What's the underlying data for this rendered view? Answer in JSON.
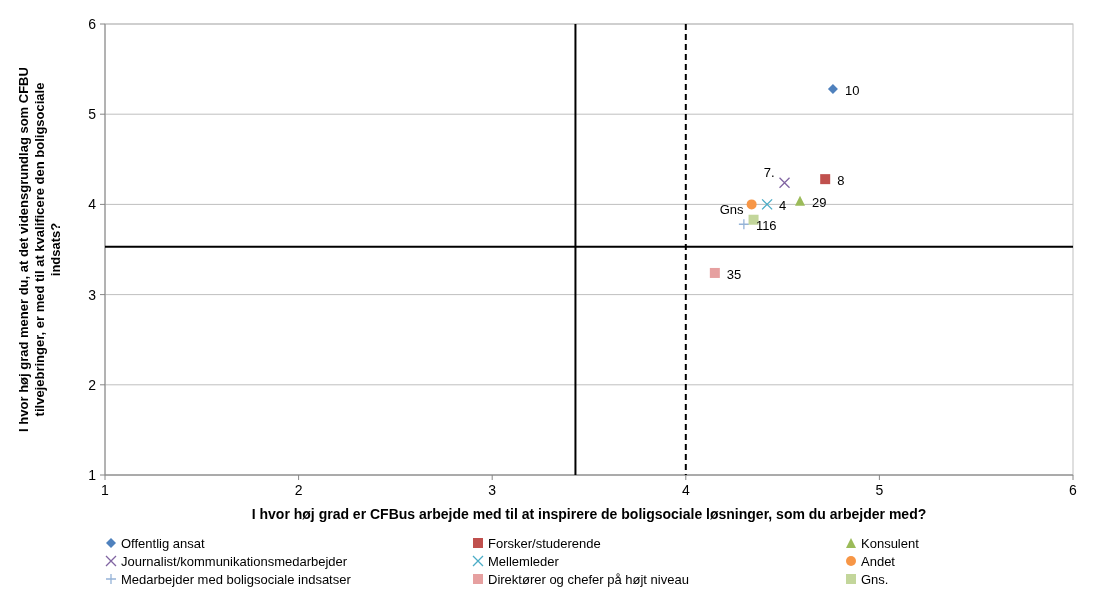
{
  "chart_data": {
    "type": "scatter",
    "xlabel": "I hvor høj grad er CFBus arbejde med til at inspirere de boligsociale løsninger, som du arbejder med?",
    "ylabel": "I hvor høj grad mener du, at det vidensgrundlag som CFBU tilvejebringer, er med til at kvalificere den boligsociale indsats?",
    "xlim": [
      1,
      6
    ],
    "ylim": [
      1,
      6
    ],
    "xticks": [
      1,
      2,
      3,
      4,
      5,
      6
    ],
    "yticks": [
      1,
      2,
      3,
      4,
      5,
      6
    ],
    "grid": "y",
    "legend": "bottom",
    "series": [
      {
        "name": "Offentlig ansat",
        "color": "#4f81bd",
        "marker": "diamond",
        "x": [
          4.76
        ],
        "values": [
          5.28
        ]
      },
      {
        "name": "Forsker/studerende",
        "color": "#c0504d",
        "marker": "square",
        "x": [
          4.72
        ],
        "values": [
          4.28
        ]
      },
      {
        "name": "Konsulent",
        "color": "#9bbb59",
        "marker": "triangle",
        "x": [
          4.59
        ],
        "values": [
          4.04
        ]
      },
      {
        "name": "Journalist/kommunikationsmedarbejder",
        "color": "#8064a2",
        "marker": "cross",
        "x": [
          4.51
        ],
        "values": [
          4.24
        ]
      },
      {
        "name": "Mellemleder",
        "color": "#4bacc6",
        "marker": "cross",
        "x": [
          4.42
        ],
        "values": [
          4.0
        ]
      },
      {
        "name": "Andet",
        "color": "#f79646",
        "marker": "circle",
        "x": [
          4.34
        ],
        "values": [
          4.0
        ]
      },
      {
        "name": "Medarbejder med boligsociale indsatser",
        "color": "#95b3d7",
        "marker": "plus",
        "x": [
          4.3
        ],
        "values": [
          3.78
        ]
      },
      {
        "name": "Direktører og chefer på højt niveau",
        "color": "#e6a0a0",
        "marker": "square",
        "x": [
          4.15
        ],
        "values": [
          3.24
        ]
      },
      {
        "name": "Gns.",
        "color": "#c3d69b",
        "marker": "square",
        "x": [
          4.35
        ],
        "values": [
          3.83
        ]
      }
    ],
    "ref_lines": [
      {
        "axis": "x",
        "value": 3.43,
        "color": "#000000",
        "line_style": "solid"
      },
      {
        "axis": "x",
        "value": 4,
        "color": "#000000",
        "line_style": "dashed"
      },
      {
        "axis": "y",
        "value": 3.53,
        "color": "#000000",
        "line_style": "solid"
      }
    ],
    "annotations": [
      {
        "text": "10",
        "x": 4.76,
        "y": 5.28
      },
      {
        "text": "8",
        "x": 4.72,
        "y": 4.28
      },
      {
        "text": "29",
        "x": 4.59,
        "y": 4.04
      },
      {
        "text": "7.",
        "x": 4.51,
        "y": 4.24
      },
      {
        "text": "4",
        "x": 4.42,
        "y": 4.0
      },
      {
        "text": "116",
        "x": 4.3,
        "y": 3.78
      },
      {
        "text": "35",
        "x": 4.15,
        "y": 3.24
      },
      {
        "text": "Gns",
        "x": 4.35,
        "y": 3.83
      }
    ]
  }
}
